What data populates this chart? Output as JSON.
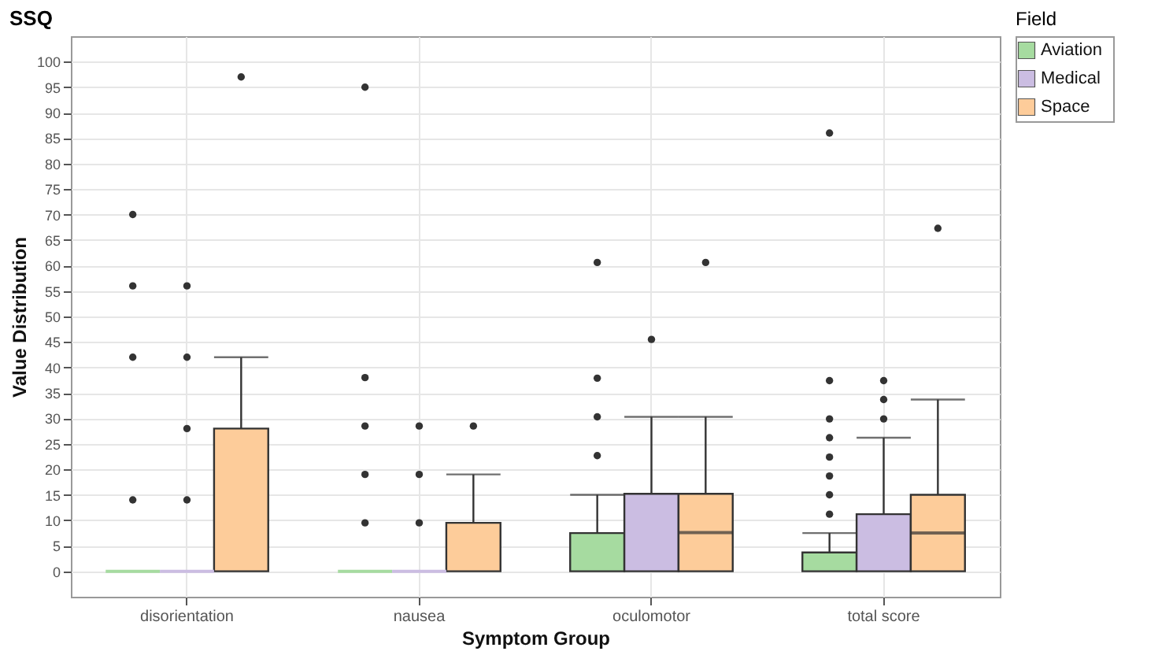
{
  "chart_data": {
    "type": "box",
    "title": "SSQ",
    "xlabel": "Symptom Group",
    "ylabel": "Value Distribution",
    "legend_title": "Field",
    "legend": "right",
    "grid": true,
    "categories": [
      "disorientation",
      "nausea",
      "oculomotor",
      "total score"
    ],
    "ylim": [
      -5,
      105
    ],
    "yticks": [
      0,
      5,
      10,
      15,
      20,
      25,
      30,
      35,
      40,
      45,
      50,
      55,
      60,
      65,
      70,
      75,
      80,
      85,
      90,
      95,
      100
    ],
    "series": [
      {
        "name": "Aviation",
        "color": "#a6dba0",
        "boxes": [
          {
            "low": 0,
            "q1": 0,
            "median": 0,
            "q3": 0,
            "high": 0,
            "outliers": [
              14,
              42,
              56,
              70
            ]
          },
          {
            "low": 0,
            "q1": 0,
            "median": 0,
            "q3": 0,
            "high": 0,
            "outliers": [
              9.5,
              19,
              28.5,
              38,
              95
            ]
          },
          {
            "low": 0,
            "q1": 0,
            "median": 0,
            "q3": 7.5,
            "high": 15,
            "outliers": [
              22.7,
              30.3,
              37.9,
              60.6
            ]
          },
          {
            "low": 0,
            "q1": 0,
            "median": 0,
            "q3": 3.7,
            "high": 7.5,
            "outliers": [
              11.2,
              15,
              18.7,
              22.4,
              26.2,
              29.9,
              37.4,
              86
            ]
          }
        ]
      },
      {
        "name": "Medical",
        "color": "#cbbde2",
        "boxes": [
          {
            "low": 0,
            "q1": 0,
            "median": 0,
            "q3": 0,
            "high": 0,
            "outliers": [
              14,
              28,
              42,
              56
            ]
          },
          {
            "low": 0,
            "q1": 0,
            "median": 0,
            "q3": 0,
            "high": 0,
            "outliers": [
              9.5,
              19,
              28.5
            ]
          },
          {
            "low": 0,
            "q1": 0,
            "median": 0,
            "q3": 15.2,
            "high": 30.3,
            "outliers": [
              45.5
            ]
          },
          {
            "low": 0,
            "q1": 0,
            "median": 0,
            "q3": 11.2,
            "high": 26.2,
            "outliers": [
              29.9,
              33.7,
              37.4
            ]
          }
        ]
      },
      {
        "name": "Space",
        "color": "#fdcc9a",
        "boxes": [
          {
            "low": 0,
            "q1": 0,
            "median": 0,
            "q3": 28,
            "high": 42,
            "outliers": [
              97
            ]
          },
          {
            "low": 0,
            "q1": 0,
            "median": 0,
            "q3": 9.5,
            "high": 19,
            "outliers": [
              28.5
            ]
          },
          {
            "low": 0,
            "q1": 0,
            "median": 7.6,
            "q3": 15.2,
            "high": 30.3,
            "outliers": [
              60.6
            ]
          },
          {
            "low": 0,
            "q1": 0,
            "median": 7.5,
            "q3": 15,
            "high": 33.7,
            "outliers": [
              67.3
            ]
          }
        ]
      }
    ]
  }
}
